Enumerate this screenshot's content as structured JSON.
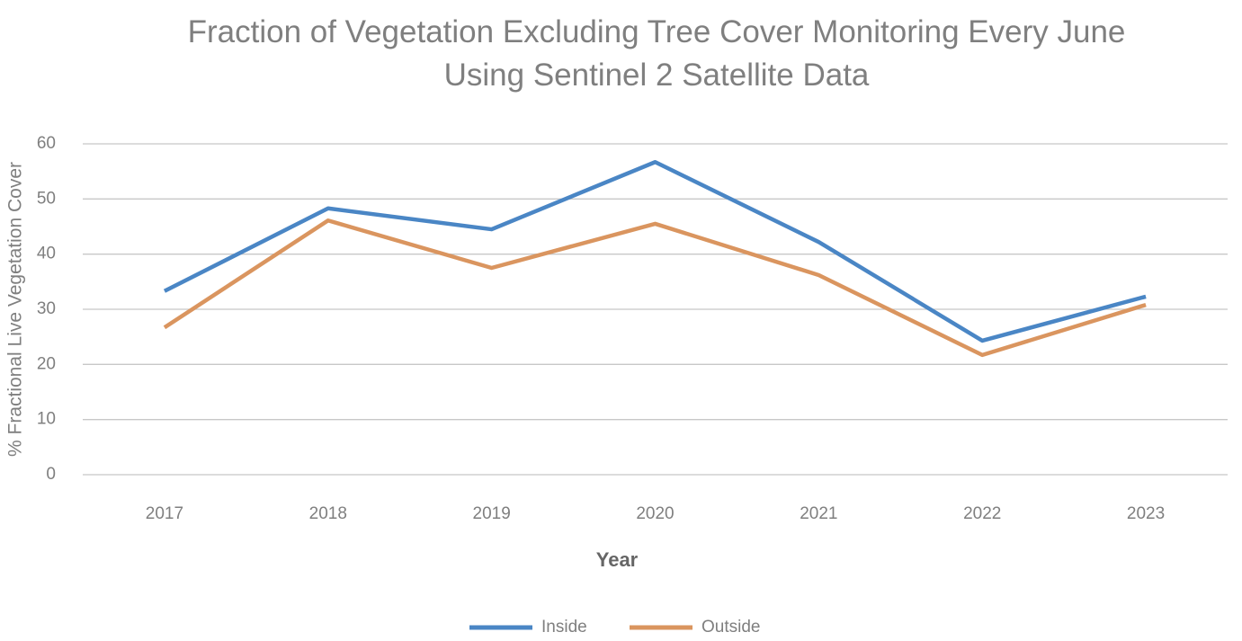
{
  "chart_data": {
    "type": "line",
    "title": "Fraction of Vegetation Excluding Tree Cover Monitoring Every June Using Sentinel 2 Satellite Data",
    "x_label": "Year",
    "y_label": "% Fractional Live Vegetation Cover",
    "categories": [
      "2017",
      "2018",
      "2019",
      "2020",
      "2021",
      "2022",
      "2023"
    ],
    "series": [
      {
        "name": "Inside",
        "color": "#4a86c5",
        "values": [
          33.3,
          48.3,
          44.5,
          56.7,
          42.2,
          24.3,
          32.3
        ]
      },
      {
        "name": "Outside",
        "color": "#da955f",
        "values": [
          26.7,
          46.1,
          37.5,
          45.5,
          36.2,
          21.7,
          30.8
        ]
      }
    ],
    "ylim": [
      0,
      60
    ],
    "yticks": [
      0,
      10,
      20,
      30,
      40,
      50,
      60
    ],
    "grid": true,
    "legend": "bottom"
  }
}
